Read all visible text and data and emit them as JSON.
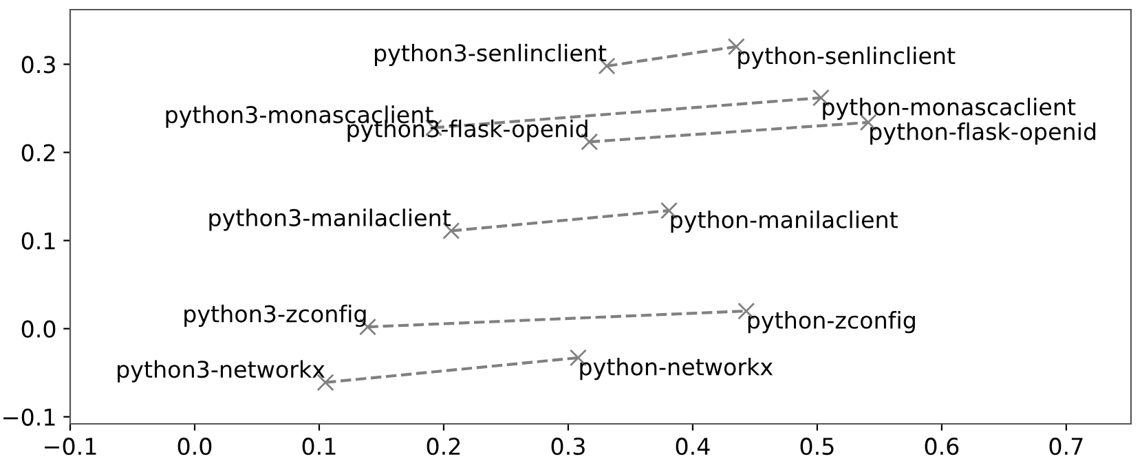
{
  "chart_data": {
    "type": "line",
    "marker": "cross",
    "line_style": "dashed",
    "grid": false,
    "legend": false,
    "xlim": [
      -0.1,
      0.752
    ],
    "ylim": [
      -0.108,
      0.362
    ],
    "xticks": [
      {
        "value": -0.1,
        "label": "−0.1"
      },
      {
        "value": 0,
        "label": "0.0"
      },
      0.1,
      0.2,
      0.3,
      0.4,
      0.5,
      0.6,
      0.7
    ],
    "yticks": [
      {
        "value": -0.1,
        "label": "−0.1"
      },
      {
        "value": 0,
        "label": "0.0"
      },
      0.1,
      0.2,
      0.3
    ],
    "series": [
      {
        "color": "#808080",
        "x": [
          0.331,
          0.435
        ],
        "values": [
          0.298,
          0.32
        ]
      },
      {
        "color": "#808080",
        "x": [
          0.192,
          0.503
        ],
        "values": [
          0.228,
          0.262
        ]
      },
      {
        "color": "#808080",
        "x": [
          0.317,
          0.541
        ],
        "values": [
          0.212,
          0.234
        ]
      },
      {
        "color": "#808080",
        "x": [
          0.206,
          0.381
        ],
        "values": [
          0.111,
          0.134
        ]
      },
      {
        "color": "#808080",
        "x": [
          0.139,
          0.443
        ],
        "values": [
          0.002,
          0.02
        ]
      },
      {
        "color": "#808080",
        "x": [
          0.105,
          0.308
        ],
        "values": [
          -0.061,
          -0.033
        ]
      }
    ],
    "annotations": [
      {
        "text": "python3-senlinclient",
        "x": 0.331,
        "y": 0.298
      },
      {
        "text": "python-senlinclient",
        "x": 0.435,
        "y": 0.32
      },
      {
        "text": "python3-monascaclient",
        "x": 0.192,
        "y": 0.228
      },
      {
        "text": "python-monascaclient",
        "x": 0.503,
        "y": 0.262
      },
      {
        "text": "python3-flask-openid",
        "x": 0.317,
        "y": 0.212
      },
      {
        "text": "python-flask-openid",
        "x": 0.541,
        "y": 0.234
      },
      {
        "text": "python3-manilaclient",
        "x": 0.206,
        "y": 0.111
      },
      {
        "text": "python-manilaclient",
        "x": 0.381,
        "y": 0.134
      },
      {
        "text": "python3-zconfig",
        "x": 0.139,
        "y": 0.002
      },
      {
        "text": "python-zconfig",
        "x": 0.443,
        "y": 0.02
      },
      {
        "text": "python3-networkx",
        "x": 0.105,
        "y": -0.061
      },
      {
        "text": "python-networkx",
        "x": 0.308,
        "y": -0.033
      }
    ]
  }
}
